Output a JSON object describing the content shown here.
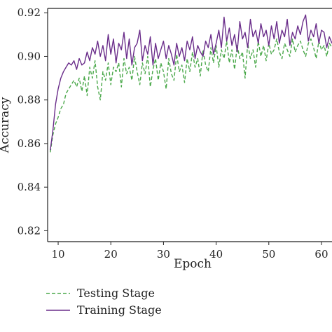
{
  "chart_data": {
    "type": "line",
    "xlabel": "Epoch",
    "ylabel": "Accuracy",
    "xlim": [
      8,
      62
    ],
    "ylim": [
      0.815,
      0.922
    ],
    "x_ticks": [
      10,
      20,
      30,
      40,
      50,
      60
    ],
    "x_tick_labels": [
      "10",
      "20",
      "30",
      "40",
      "50",
      "60"
    ],
    "y_ticks": [
      0.82,
      0.84,
      0.86,
      0.88,
      0.9,
      0.92
    ],
    "y_tick_labels": [
      "0.82",
      "0.84",
      "0.86",
      "0.88",
      "0.90",
      "0.92"
    ],
    "grid": false,
    "legend_position": "bottom-left",
    "x": [
      8.5,
      9,
      9.5,
      10,
      10.5,
      11,
      11.5,
      12,
      12.5,
      13,
      13.5,
      14,
      14.5,
      15,
      15.5,
      16,
      16.5,
      17,
      17.5,
      18,
      18.5,
      19,
      19.5,
      20,
      20.5,
      21,
      21.5,
      22,
      22.5,
      23,
      23.5,
      24,
      24.5,
      25,
      25.5,
      26,
      26.5,
      27,
      27.5,
      28,
      28.5,
      29,
      29.5,
      30,
      30.5,
      31,
      31.5,
      32,
      32.5,
      33,
      33.5,
      34,
      34.5,
      35,
      35.5,
      36,
      36.5,
      37,
      37.5,
      38,
      38.5,
      39,
      39.5,
      40,
      40.5,
      41,
      41.5,
      42,
      42.5,
      43,
      43.5,
      44,
      44.5,
      45,
      45.5,
      46,
      46.5,
      47,
      47.5,
      48,
      48.5,
      49,
      49.5,
      50,
      50.5,
      51,
      51.5,
      52,
      52.5,
      53,
      53.5,
      54,
      54.5,
      55,
      55.5,
      56,
      56.5,
      57,
      57.5,
      58,
      58.5,
      59,
      59.5,
      60,
      60.5,
      61,
      61.5,
      62
    ],
    "series": [
      {
        "name": "Testing Stage",
        "color": "#4aa84a",
        "dash": "dashed",
        "values": [
          0.856,
          0.864,
          0.869,
          0.872,
          0.876,
          0.878,
          0.883,
          0.885,
          0.887,
          0.889,
          0.886,
          0.89,
          0.884,
          0.891,
          0.882,
          0.895,
          0.89,
          0.898,
          0.886,
          0.88,
          0.893,
          0.889,
          0.897,
          0.887,
          0.895,
          0.893,
          0.897,
          0.886,
          0.899,
          0.892,
          0.895,
          0.889,
          0.9,
          0.893,
          0.887,
          0.897,
          0.892,
          0.9,
          0.886,
          0.894,
          0.899,
          0.889,
          0.897,
          0.893,
          0.885,
          0.899,
          0.892,
          0.889,
          0.901,
          0.893,
          0.896,
          0.888,
          0.899,
          0.893,
          0.902,
          0.895,
          0.899,
          0.891,
          0.903,
          0.896,
          0.893,
          0.904,
          0.897,
          0.905,
          0.895,
          0.903,
          0.899,
          0.907,
          0.897,
          0.903,
          0.894,
          0.905,
          0.899,
          0.902,
          0.89,
          0.906,
          0.899,
          0.903,
          0.895,
          0.907,
          0.9,
          0.905,
          0.898,
          0.906,
          0.901,
          0.903,
          0.908,
          0.902,
          0.899,
          0.906,
          0.903,
          0.9,
          0.908,
          0.902,
          0.905,
          0.907,
          0.903,
          0.9,
          0.906,
          0.908,
          0.904,
          0.899,
          0.907,
          0.903,
          0.905,
          0.9,
          0.906,
          0.904
        ]
      },
      {
        "name": "Training Stage",
        "color": "#6a2d8a",
        "dash": "solid",
        "values": [
          0.857,
          0.866,
          0.878,
          0.885,
          0.89,
          0.893,
          0.895,
          0.897,
          0.896,
          0.898,
          0.894,
          0.899,
          0.896,
          0.897,
          0.902,
          0.898,
          0.904,
          0.901,
          0.907,
          0.9,
          0.905,
          0.898,
          0.91,
          0.901,
          0.908,
          0.897,
          0.906,
          0.903,
          0.911,
          0.899,
          0.908,
          0.896,
          0.904,
          0.906,
          0.912,
          0.898,
          0.905,
          0.901,
          0.909,
          0.896,
          0.906,
          0.899,
          0.903,
          0.907,
          0.899,
          0.905,
          0.901,
          0.896,
          0.906,
          0.9,
          0.904,
          0.898,
          0.907,
          0.903,
          0.909,
          0.899,
          0.905,
          0.902,
          0.9,
          0.907,
          0.904,
          0.91,
          0.901,
          0.906,
          0.912,
          0.904,
          0.918,
          0.907,
          0.913,
          0.905,
          0.91,
          0.902,
          0.916,
          0.908,
          0.911,
          0.904,
          0.917,
          0.909,
          0.912,
          0.906,
          0.915,
          0.909,
          0.912,
          0.905,
          0.914,
          0.908,
          0.916,
          0.906,
          0.912,
          0.909,
          0.917,
          0.905,
          0.911,
          0.908,
          0.914,
          0.91,
          0.916,
          0.919,
          0.907,
          0.912,
          0.909,
          0.915,
          0.906,
          0.912,
          0.911,
          0.904,
          0.909,
          0.906
        ]
      }
    ]
  }
}
